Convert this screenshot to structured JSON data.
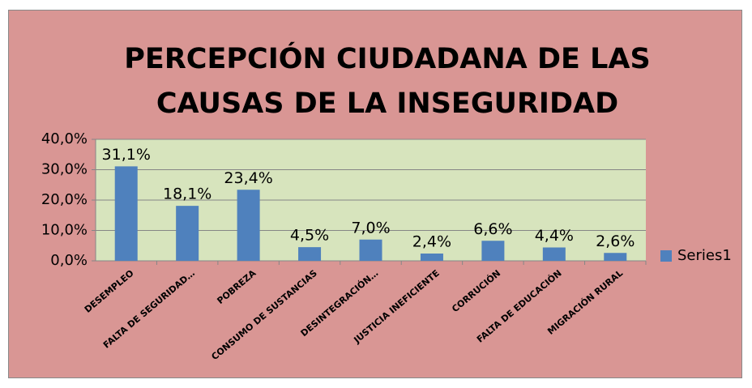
{
  "chart_data": {
    "type": "bar",
    "title": [
      "PERCEPCIÓN CIUDADANA DE LAS",
      "CAUSAS DE LA INSEGURIDAD"
    ],
    "categories": [
      "DESEMPLEO",
      "FALTA DE SEGURIDAD…",
      "POBREZA",
      "CONSUMO DE SUSTANCIAS",
      "DESINTEGRACIÓN…",
      "JUSTICIA INEFICIENTE",
      "CORRUCIÓN",
      "FALTA DE EDUCACIÓN",
      "MIGRACIÓN RURAL"
    ],
    "series": [
      {
        "name": "Series1",
        "color": "#4f81bd",
        "values": [
          31.1,
          18.1,
          23.4,
          4.5,
          7.0,
          2.4,
          6.6,
          4.4,
          2.6
        ],
        "value_labels": [
          "31,1%",
          "18,1%",
          "23,4%",
          "4,5%",
          "7,0%",
          "2,4%",
          "6,6%",
          "4,4%",
          "2,6%"
        ]
      }
    ],
    "ylim": [
      0,
      40
    ],
    "yticks": [
      {
        "value": 0,
        "label": "0,0%"
      },
      {
        "value": 10,
        "label": "10,0%"
      },
      {
        "value": 20,
        "label": "20,0%"
      },
      {
        "value": 30,
        "label": "30,0%"
      },
      {
        "value": 40,
        "label": "40,0%"
      }
    ],
    "grid": true,
    "legend": "right"
  }
}
